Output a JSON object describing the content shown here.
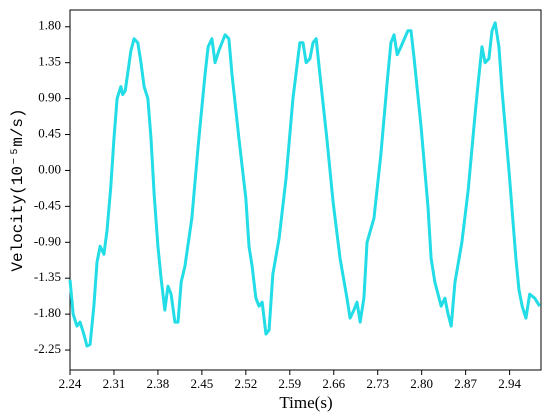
{
  "chart_data": {
    "type": "line",
    "x_label": "Time(s)",
    "y_label": "Velocity(10⁻⁵m/s)",
    "xlim": [
      2.24,
      2.99
    ],
    "ylim": [
      -2.5,
      2.01
    ],
    "xticks": [
      2.24,
      2.31,
      2.38,
      2.45,
      2.52,
      2.59,
      2.66,
      2.73,
      {
        "value": 2.8,
        "label": "2.80"
      },
      2.87,
      2.94
    ],
    "yticks": [
      {
        "value": 1.8,
        "label": "1.80"
      },
      1.35,
      {
        "value": 0.9,
        "label": "0.90"
      },
      0.45,
      {
        "value": 0,
        "label": "0.00"
      },
      -0.45,
      {
        "value": -0.9,
        "label": "-0.90"
      },
      -1.35,
      {
        "value": -1.8,
        "label": "-1.80"
      },
      -2.25
    ],
    "series": [
      {
        "color": "#22dce6",
        "x": [
          2.24,
          2.245,
          2.251,
          2.256,
          2.262,
          2.267,
          2.272,
          2.278,
          2.283,
          2.288,
          2.294,
          2.299,
          2.305,
          2.31,
          2.315,
          2.321,
          2.324,
          2.328,
          2.337,
          2.342,
          2.348,
          2.353,
          2.358,
          2.364,
          2.369,
          2.374,
          2.38,
          2.385,
          2.391,
          2.396,
          2.401,
          2.407,
          2.412,
          2.417,
          2.423,
          2.434,
          2.444,
          2.455,
          2.46,
          2.466,
          2.471,
          2.477,
          2.487,
          2.493,
          2.498,
          2.509,
          2.52,
          2.525,
          2.53,
          2.536,
          2.541,
          2.546,
          2.552,
          2.557,
          2.563,
          2.573,
          2.584,
          2.595,
          2.606,
          2.611,
          2.616,
          2.622,
          2.627,
          2.632,
          2.638,
          2.649,
          2.659,
          2.67,
          2.681,
          2.686,
          2.692,
          2.697,
          2.702,
          2.708,
          2.713,
          2.724,
          2.735,
          2.745,
          2.751,
          2.756,
          2.761,
          2.767,
          2.778,
          2.783,
          2.788,
          2.799,
          2.81,
          2.815,
          2.821,
          2.826,
          2.831,
          2.837,
          2.842,
          2.847,
          2.853,
          2.864,
          2.874,
          2.885,
          2.89,
          2.896,
          2.901,
          2.907,
          2.912,
          2.917,
          2.923,
          2.928,
          2.939,
          2.95,
          2.955,
          2.96,
          2.966,
          2.972,
          2.98,
          2.988
        ],
        "values": [
          -1.37,
          -1.8,
          -1.95,
          -1.9,
          -2.05,
          -2.2,
          -2.18,
          -1.7,
          -1.15,
          -0.95,
          -1.05,
          -0.75,
          -0.2,
          0.4,
          0.9,
          1.05,
          0.95,
          1.0,
          1.5,
          1.65,
          1.6,
          1.35,
          1.05,
          0.9,
          0.4,
          -0.3,
          -0.95,
          -1.35,
          -1.75,
          -1.45,
          -1.55,
          -1.9,
          -1.9,
          -1.4,
          -1.2,
          -0.6,
          0.3,
          1.2,
          1.55,
          1.65,
          1.35,
          1.5,
          1.7,
          1.65,
          1.2,
          0.4,
          -0.35,
          -0.95,
          -1.2,
          -1.6,
          -1.7,
          -1.65,
          -2.05,
          -2.0,
          -1.3,
          -0.85,
          -0.1,
          0.9,
          1.6,
          1.6,
          1.35,
          1.4,
          1.6,
          1.65,
          1.2,
          0.4,
          -0.4,
          -1.1,
          -1.6,
          -1.85,
          -1.75,
          -1.65,
          -1.9,
          -1.6,
          -0.9,
          -0.6,
          0.2,
          1.1,
          1.6,
          1.7,
          1.45,
          1.55,
          1.75,
          1.75,
          1.4,
          0.55,
          -0.45,
          -1.1,
          -1.4,
          -1.55,
          -1.7,
          -1.6,
          -1.8,
          -1.95,
          -1.4,
          -0.9,
          -0.25,
          0.7,
          1.1,
          1.55,
          1.35,
          1.4,
          1.75,
          1.85,
          1.55,
          1.0,
          0.0,
          -1.1,
          -1.5,
          -1.7,
          -1.85,
          -1.55,
          -1.6,
          -1.7
        ]
      }
    ]
  }
}
